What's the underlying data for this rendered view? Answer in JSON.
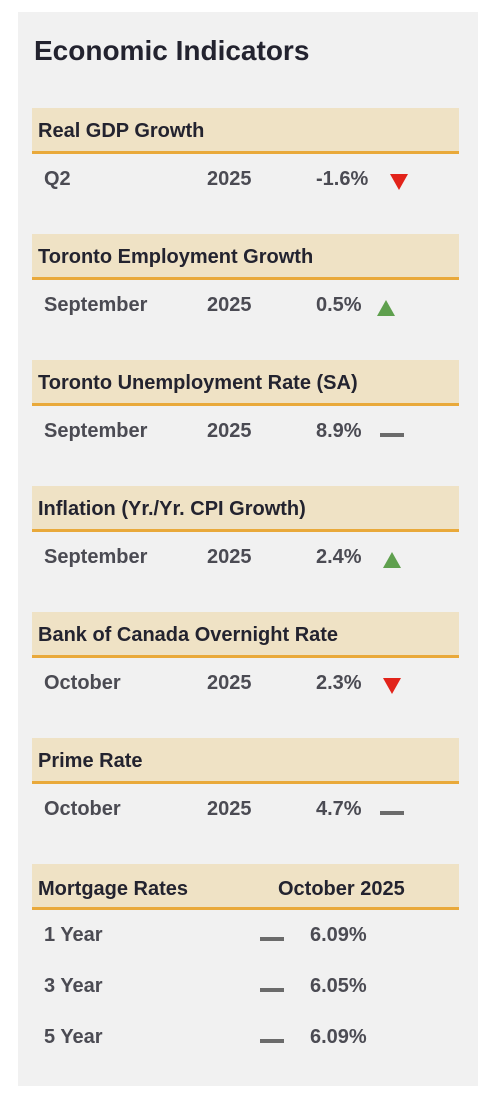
{
  "title": "Economic Indicators",
  "indicators": [
    {
      "label": "Real GDP Growth",
      "period": "Q2",
      "year": "2025",
      "value": "-1.6%",
      "trend": "down"
    },
    {
      "label": "Toronto Employment Growth",
      "period": "September",
      "year": "2025",
      "value": "0.5%",
      "trend": "up"
    },
    {
      "label": "Toronto Unemployment Rate (SA)",
      "period": "September",
      "year": "2025",
      "value": "8.9%",
      "trend": "flat"
    },
    {
      "label": "Inflation (Yr./Yr. CPI Growth)",
      "period": "September",
      "year": "2025",
      "value": "2.4%",
      "trend": "up"
    },
    {
      "label": "Bank of Canada Overnight Rate",
      "period": "October",
      "year": "2025",
      "value": "2.3%",
      "trend": "down"
    },
    {
      "label": "Prime Rate",
      "period": "October",
      "year": "2025",
      "value": "4.7%",
      "trend": "flat"
    }
  ],
  "mortgage": {
    "label": "Mortgage Rates",
    "period": "October 2025",
    "rows": [
      {
        "term": "1 Year",
        "rate": "6.09%",
        "trend": "flat"
      },
      {
        "term": "3 Year",
        "rate": "6.05%",
        "trend": "flat"
      },
      {
        "term": "5 Year",
        "rate": "6.09%",
        "trend": "flat"
      }
    ]
  },
  "colors": {
    "header_bg": "#efe2c5",
    "header_border": "#e9a93a",
    "trend_down": "#e2231a",
    "trend_up": "#5fa04e",
    "trend_flat": "#6b6b6b"
  }
}
